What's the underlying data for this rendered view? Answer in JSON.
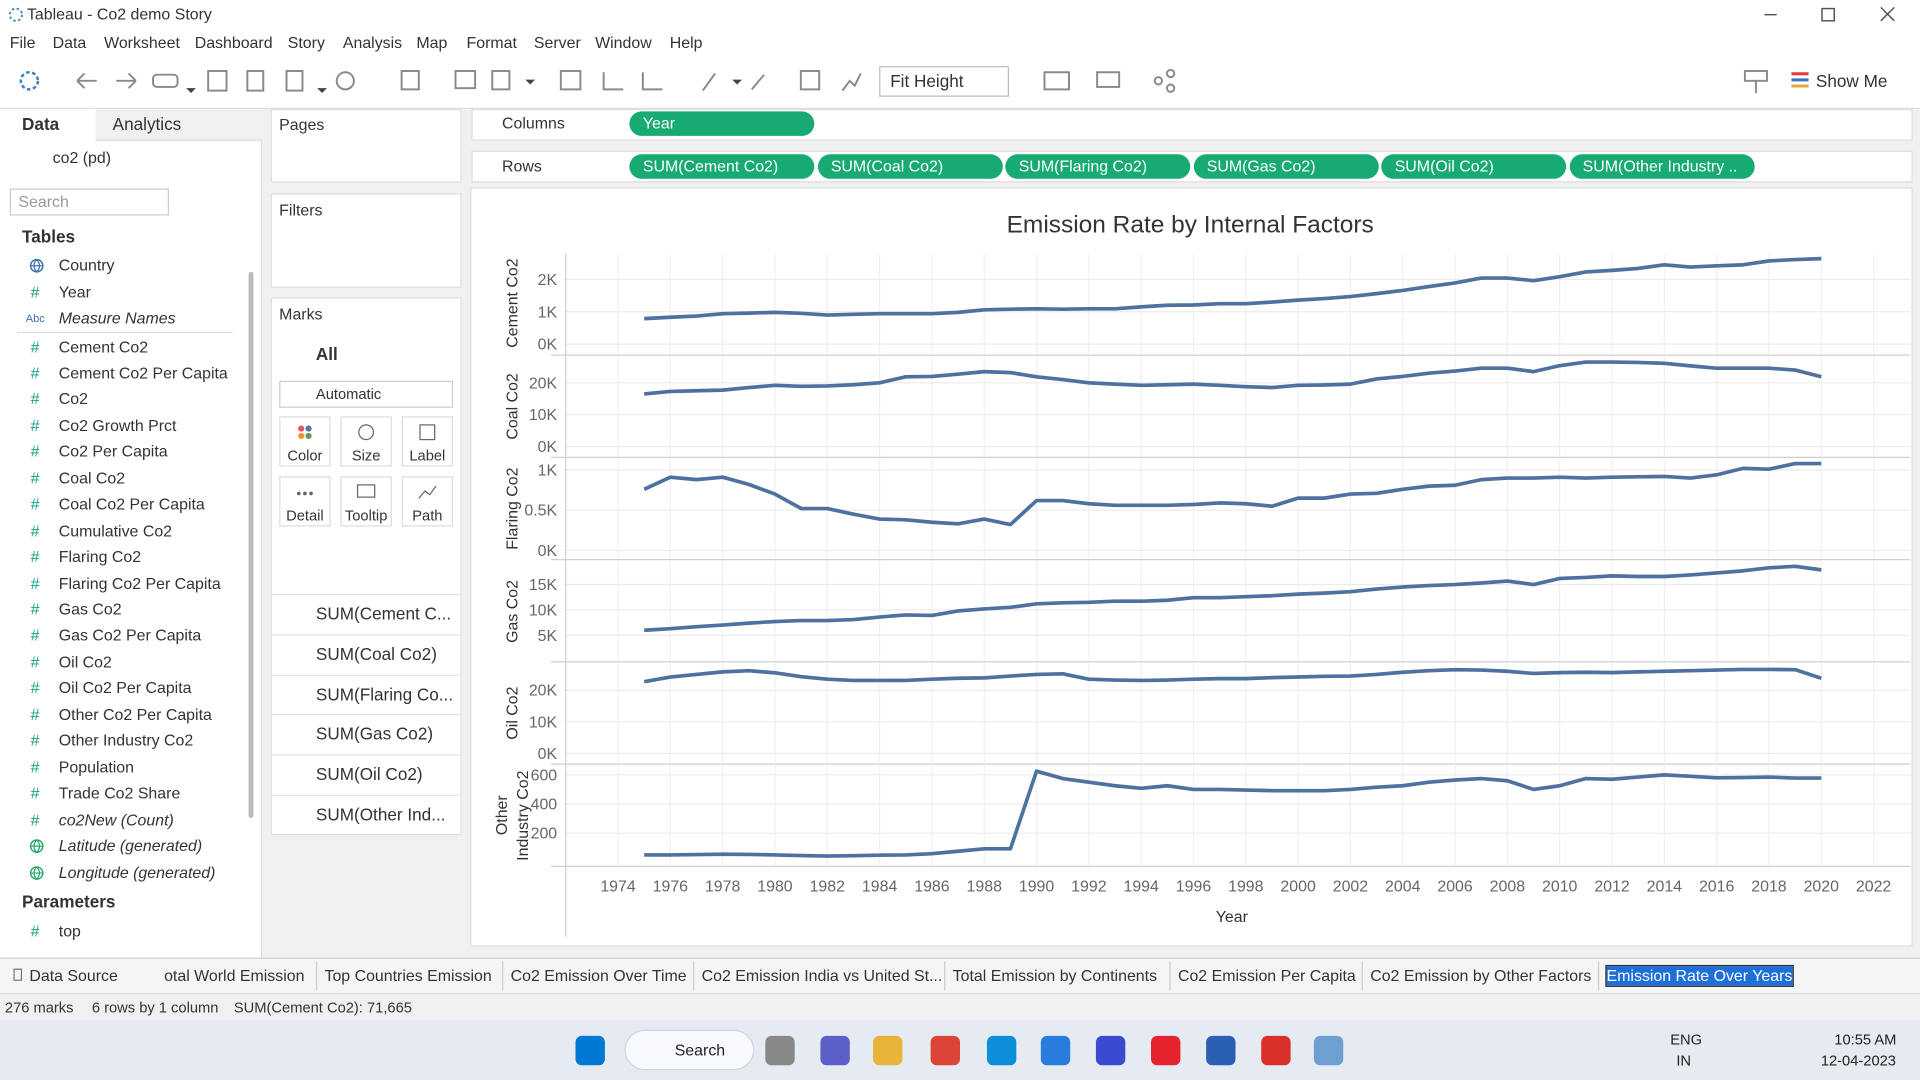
{
  "window": {
    "title": "Tableau - Co2 demo Story"
  },
  "menu": [
    "File",
    "Data",
    "Worksheet",
    "Dashboard",
    "Story",
    "Analysis",
    "Map",
    "Format",
    "Server",
    "Window",
    "Help"
  ],
  "toolbar": {
    "fit": "Fit Height",
    "show_me": "Show Me"
  },
  "data_pane": {
    "tabs": [
      "Data",
      "Analytics"
    ],
    "datasource": "co2 (pd)",
    "search": "Search",
    "tables_heading": "Tables",
    "fields": [
      {
        "label": "Country"
      },
      {
        "icon": "#",
        "label": "Year"
      },
      {
        "icon": "Abc",
        "label": "Measure Names",
        "italic": true
      },
      {
        "icon": "#",
        "label": "Cement Co2"
      },
      {
        "icon": "#",
        "label": "Cement Co2 Per Capita"
      },
      {
        "icon": "#",
        "label": "Co2"
      },
      {
        "icon": "#",
        "label": "Co2 Growth Prct"
      },
      {
        "icon": "#",
        "label": "Co2 Per Capita"
      },
      {
        "icon": "#",
        "label": "Coal Co2"
      },
      {
        "icon": "#",
        "label": "Coal Co2 Per Capita"
      },
      {
        "icon": "#",
        "label": "Cumulative Co2"
      },
      {
        "icon": "#",
        "label": "Flaring Co2"
      },
      {
        "icon": "#",
        "label": "Flaring Co2 Per Capita"
      },
      {
        "icon": "#",
        "label": "Gas Co2"
      },
      {
        "icon": "#",
        "label": "Gas Co2 Per Capita"
      },
      {
        "icon": "#",
        "label": "Oil Co2"
      },
      {
        "icon": "#",
        "label": "Oil Co2 Per Capita"
      },
      {
        "icon": "#",
        "label": "Other Co2 Per Capita"
      },
      {
        "icon": "#",
        "label": "Other Industry Co2"
      },
      {
        "icon": "#",
        "label": "Population"
      },
      {
        "icon": "#",
        "label": "Trade Co2 Share"
      },
      {
        "icon": "#",
        "label": "co2New (Count)",
        "italic": true
      },
      {
        "label": "Latitude (generated)",
        "italic": true
      },
      {
        "label": "Longitude (generated)",
        "italic": true
      }
    ],
    "parameters_heading": "Parameters",
    "parameters": [
      {
        "icon": "#",
        "label": "top"
      }
    ]
  },
  "cards": {
    "pages": "Pages",
    "filters": "Filters",
    "marks": "Marks",
    "all": "All",
    "mark_type": "Automatic",
    "buttons": [
      "Color",
      "Size",
      "Label",
      "Detail",
      "Tooltip",
      "Path"
    ],
    "measures": [
      "SUM(Cement C...",
      "SUM(Coal Co2)",
      "SUM(Flaring Co...",
      "SUM(Gas Co2)",
      "SUM(Oil Co2)",
      "SUM(Other Ind..."
    ]
  },
  "shelves": {
    "columns_label": "Columns",
    "columns": [
      "Year"
    ],
    "rows_label": "Rows",
    "rows": [
      "SUM(Cement Co2)",
      "SUM(Coal Co2)",
      "SUM(Flaring Co2)",
      "SUM(Gas Co2)",
      "SUM(Oil Co2)",
      "SUM(Other Industry .."
    ]
  },
  "chart_data": {
    "type": "line",
    "title": "Emission Rate by Internal Factors",
    "x_label": "Year",
    "color": "#4e72a0",
    "grid": true,
    "x": [
      1975,
      1976,
      1977,
      1978,
      1979,
      1980,
      1981,
      1982,
      1983,
      1984,
      1985,
      1986,
      1987,
      1988,
      1989,
      1990,
      1991,
      1992,
      1993,
      1994,
      1995,
      1996,
      1997,
      1998,
      1999,
      2000,
      2001,
      2002,
      2003,
      2004,
      2005,
      2006,
      2007,
      2008,
      2009,
      2010,
      2011,
      2012,
      2013,
      2014,
      2015,
      2016,
      2017,
      2018,
      2019,
      2020
    ],
    "xlim": [
      1972,
      2023.4
    ],
    "xticks": [
      1974,
      1976,
      1978,
      1980,
      1982,
      1984,
      1986,
      1988,
      1990,
      1992,
      1994,
      1996,
      1998,
      2000,
      2002,
      2004,
      2006,
      2008,
      2010,
      2012,
      2014,
      2016,
      2018,
      2020,
      2022
    ],
    "panels": [
      {
        "name": "Cement Co2",
        "ylim": [
          -300,
          2800
        ],
        "yticks": [
          {
            "value": 0,
            "label": "0K"
          },
          {
            "value": 1000,
            "label": "1K"
          },
          {
            "value": 2000,
            "label": "2K"
          }
        ],
        "values": [
          790,
          830,
          870,
          940,
          960,
          980,
          950,
          900,
          920,
          940,
          940,
          940,
          980,
          1060,
          1080,
          1090,
          1080,
          1090,
          1090,
          1150,
          1200,
          1210,
          1250,
          1250,
          1300,
          1360,
          1410,
          1470,
          1560,
          1660,
          1780,
          1890,
          2040,
          2040,
          1960,
          2080,
          2230,
          2280,
          2340,
          2450,
          2380,
          2420,
          2450,
          2570,
          2610,
          2640
        ]
      },
      {
        "name": "Coal Co2",
        "ylim": [
          -3000,
          28500
        ],
        "yticks": [
          {
            "value": 0,
            "label": "0K"
          },
          {
            "value": 10000,
            "label": "10K"
          },
          {
            "value": 20000,
            "label": "20K"
          }
        ],
        "values": [
          16500,
          17300,
          17500,
          17700,
          18500,
          19200,
          18900,
          19000,
          19400,
          20000,
          21900,
          22000,
          22700,
          23500,
          23200,
          21900,
          21000,
          20000,
          19600,
          19200,
          19400,
          19600,
          19200,
          18800,
          18500,
          19200,
          19300,
          19600,
          21200,
          22000,
          23000,
          23700,
          24600,
          24600,
          23500,
          25400,
          26500,
          26500,
          26400,
          26100,
          25300,
          24600,
          24600,
          24600,
          24000,
          21900
        ]
      },
      {
        "name": "Flaring Co2",
        "ylim": [
          -100,
          1150
        ],
        "yticks": [
          {
            "value": 0,
            "label": "0K"
          },
          {
            "value": 500,
            "label": "0.5K"
          },
          {
            "value": 1000,
            "label": "1K"
          }
        ],
        "values": [
          760,
          910,
          880,
          910,
          820,
          700,
          520,
          520,
          450,
          390,
          380,
          350,
          330,
          390,
          320,
          620,
          620,
          580,
          560,
          560,
          560,
          570,
          590,
          580,
          550,
          650,
          650,
          700,
          710,
          760,
          800,
          810,
          880,
          900,
          900,
          910,
          900,
          910,
          915,
          920,
          900,
          940,
          1020,
          1010,
          1080,
          1080
        ]
      },
      {
        "name": "Gas Co2",
        "ylim": [
          0,
          19800
        ],
        "yticks": [
          {
            "value": 5000,
            "label": "5K"
          },
          {
            "value": 10000,
            "label": "10K"
          },
          {
            "value": 15000,
            "label": "15K"
          }
        ],
        "values": [
          6000,
          6300,
          6700,
          7000,
          7400,
          7700,
          7900,
          7900,
          8100,
          8600,
          9000,
          8900,
          9800,
          10200,
          10500,
          11200,
          11400,
          11500,
          11700,
          11700,
          11900,
          12400,
          12400,
          12600,
          12800,
          13100,
          13300,
          13600,
          14100,
          14500,
          14800,
          15000,
          15300,
          15700,
          15000,
          16200,
          16400,
          16700,
          16600,
          16600,
          16900,
          17300,
          17700,
          18300,
          18600,
          17900
        ]
      },
      {
        "name": "Oil Co2",
        "ylim": [
          -3000,
          28800
        ],
        "yticks": [
          {
            "value": 0,
            "label": "0K"
          },
          {
            "value": 10000,
            "label": "10K"
          },
          {
            "value": 20000,
            "label": "20K"
          }
        ],
        "values": [
          22700,
          24200,
          25000,
          25800,
          26200,
          25500,
          24300,
          23500,
          23100,
          23100,
          23100,
          23500,
          23800,
          23900,
          24500,
          25000,
          25200,
          23500,
          23200,
          23100,
          23200,
          23500,
          23700,
          23700,
          24000,
          24200,
          24400,
          24500,
          25000,
          25700,
          26200,
          26500,
          26400,
          26000,
          25300,
          25600,
          25700,
          25600,
          25800,
          26000,
          26200,
          26400,
          26600,
          26600,
          26500,
          23800
        ]
      },
      {
        "name": "Other Industry Co2",
        "ylim": [
          -20,
          670
        ],
        "yticks": [
          200,
          400,
          600
        ],
        "values": [
          50,
          50,
          52,
          55,
          53,
          50,
          46,
          42,
          45,
          48,
          50,
          58,
          75,
          92,
          92,
          625,
          575,
          550,
          525,
          508,
          525,
          500,
          500,
          496,
          492,
          492,
          492,
          500,
          515,
          525,
          550,
          565,
          575,
          560,
          500,
          525,
          575,
          570,
          585,
          600,
          590,
          580,
          582,
          585,
          578,
          578
        ]
      }
    ]
  },
  "sheet_tabs": {
    "data_source": "Data Source",
    "tabs": [
      "otal World Emission",
      "Top Countries Emission",
      "Co2 Emission Over Time",
      "Co2 Emission India vs United St...",
      "Total Emission by Continents",
      "Co2 Emission Per Capita",
      "Co2 Emission by Other Factors",
      "Emission Rate Over Years"
    ],
    "active": 7
  },
  "status_bar": [
    "276 marks",
    "6 rows by 1 column",
    "SUM(Cement Co2): 71,665"
  ],
  "taskbar": {
    "search": "Search",
    "language": "ENG",
    "region": "IN",
    "time": "10:55 AM",
    "date": "12-04-2023"
  }
}
